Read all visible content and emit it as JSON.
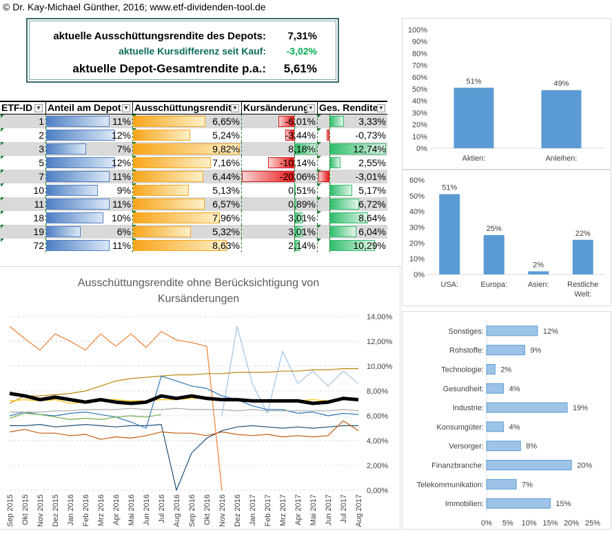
{
  "header": {
    "copyright": "© Dr. Kay-Michael Günther, 2016; www.etf-dividenden-tool.de"
  },
  "summary": {
    "row1_label": "aktuelle Ausschüttungsrendite des Depots:",
    "row1_value": "7,31%",
    "row2_label": "aktuelle Kursdifferenz seit Kauf:",
    "row2_value": "-3,02%",
    "row3_label": "aktuelle Depot-Gesamtrendite p.a.:",
    "row3_value": "5,61%",
    "colors": {
      "negative": "#00b050",
      "border": "#3a6b6b"
    }
  },
  "table": {
    "headers": [
      "ETF-ID",
      "Anteil am Depot",
      "Ausschüttungsrendite",
      "Kursänderung",
      "Ges. Rendite"
    ],
    "rows": [
      {
        "id": "1",
        "anteil": "11%",
        "anteil_v": 11,
        "aus": "6,65%",
        "aus_v": 6.65,
        "kurs": "-6,01%",
        "kurs_v": -6.01,
        "ges": "3,33%",
        "ges_v": 3.33
      },
      {
        "id": "2",
        "anteil": "12%",
        "anteil_v": 12,
        "aus": "5,24%",
        "aus_v": 5.24,
        "kurs": "-3,44%",
        "kurs_v": -3.44,
        "ges": "-0,73%",
        "ges_v": -0.73
      },
      {
        "id": "3",
        "anteil": "7%",
        "anteil_v": 7,
        "aus": "9,82%",
        "aus_v": 9.82,
        "kurs": "8,18%",
        "kurs_v": 8.18,
        "ges": "12,74%",
        "ges_v": 12.74
      },
      {
        "id": "5",
        "anteil": "12%",
        "anteil_v": 12,
        "aus": "7,16%",
        "aus_v": 7.16,
        "kurs": "-10,14%",
        "kurs_v": -10.14,
        "ges": "2,55%",
        "ges_v": 2.55
      },
      {
        "id": "7",
        "anteil": "11%",
        "anteil_v": 11,
        "aus": "6,44%",
        "aus_v": 6.44,
        "kurs": "-20,06%",
        "kurs_v": -20.06,
        "ges": "-3,01%",
        "ges_v": -3.01
      },
      {
        "id": "10",
        "anteil": "9%",
        "anteil_v": 9,
        "aus": "5,13%",
        "aus_v": 5.13,
        "kurs": "0,51%",
        "kurs_v": 0.51,
        "ges": "5,17%",
        "ges_v": 5.17
      },
      {
        "id": "11",
        "anteil": "11%",
        "anteil_v": 11,
        "aus": "6,57%",
        "aus_v": 6.57,
        "kurs": "0,89%",
        "kurs_v": 0.89,
        "ges": "6,72%",
        "ges_v": 6.72
      },
      {
        "id": "18",
        "anteil": "10%",
        "anteil_v": 10,
        "aus": "7,96%",
        "aus_v": 7.96,
        "kurs": "3,01%",
        "kurs_v": 3.01,
        "ges": "8,64%",
        "ges_v": 8.64
      },
      {
        "id": "19",
        "anteil": "6%",
        "anteil_v": 6,
        "aus": "5,32%",
        "aus_v": 5.32,
        "kurs": "3,01%",
        "kurs_v": 3.01,
        "ges": "6,04%",
        "ges_v": 6.04
      },
      {
        "id": "72",
        "anteil": "11%",
        "anteil_v": 11,
        "aus": "8,63%",
        "aus_v": 8.63,
        "kurs": "2,14%",
        "kurs_v": 2.14,
        "ges": "10,29%",
        "ges_v": 10.29
      }
    ],
    "stripe_color": "#d9d9d9"
  },
  "chart_data": [
    {
      "type": "bar",
      "id": "asset-class",
      "categories": [
        "Aktien:",
        "Anleihen:"
      ],
      "values": [
        51,
        49
      ],
      "data_labels": [
        "51%",
        "49%"
      ],
      "y_ticks": [
        "0%",
        "10%",
        "20%",
        "30%",
        "40%",
        "50%",
        "60%",
        "70%",
        "80%",
        "90%",
        "100%"
      ],
      "ylim": [
        0,
        100
      ],
      "color": "#5b9bd5"
    },
    {
      "type": "bar",
      "id": "region",
      "categories": [
        "USA:",
        "Europa:",
        "Asien:",
        "Restliche Welt:"
      ],
      "values": [
        51,
        25,
        2,
        22
      ],
      "data_labels": [
        "51%",
        "25%",
        "2%",
        "22%"
      ],
      "y_ticks": [
        "0%",
        "10%",
        "20%",
        "30%",
        "40%",
        "50%",
        "60%"
      ],
      "ylim": [
        0,
        60
      ],
      "color": "#5b9bd5"
    },
    {
      "type": "bar",
      "orientation": "horizontal",
      "id": "sector",
      "categories": [
        "Sonstiges:",
        "Rohstoffe:",
        "Technologie:",
        "Gesundheit:",
        "Industrie:",
        "Konsumgüter:",
        "Versorger:",
        "Finanzbranche:",
        "Telekommunikation:",
        "Immobilien:"
      ],
      "values": [
        12,
        9,
        2,
        4,
        19,
        4,
        8,
        20,
        7,
        15
      ],
      "data_labels": [
        "12%",
        "9%",
        "2%",
        "4%",
        "19%",
        "4%",
        "8%",
        "20%",
        "7%",
        "15%"
      ],
      "x_ticks": [
        "0%",
        "5%",
        "10%",
        "15%",
        "20%",
        "25%"
      ],
      "xlim": [
        0,
        25
      ],
      "color": "#9dc3e6"
    },
    {
      "type": "line",
      "id": "yield-history",
      "title": "Ausschüttungsrendite ohne Berücksichtigung von Kursänderungen",
      "x": [
        "Sep 2015",
        "Okt 2015",
        "Nov 2015",
        "Dez 2015",
        "Jan 2016",
        "Feb 2016",
        "Mrz 2016",
        "Apr 2016",
        "Mai 2016",
        "Jun 2016",
        "Jul 2016",
        "Aug 2016",
        "Sep 2016",
        "Okt 2016",
        "Nov 2016",
        "Dez 2016",
        "Jan 2017",
        "Feb 2017",
        "Mrz 2017",
        "Apr 2017",
        "Mai 2017",
        "Jun 2017",
        "Jul 2017",
        "Aug 2017"
      ],
      "y_ticks": [
        "0,00%",
        "2,00%",
        "4,00%",
        "6,00%",
        "8,00%",
        "10,00%",
        "12,00%",
        "14,00%"
      ],
      "ylim": [
        0,
        14
      ],
      "series": [
        {
          "color": "#ed7d31",
          "values": [
            13.2,
            12.2,
            11.3,
            12.6,
            12.0,
            11.3,
            12.6,
            11.6,
            12.6,
            11.5,
            12.8,
            12.1,
            11.9,
            11.6,
            0,
            null,
            null,
            null,
            null,
            null,
            null,
            null,
            null,
            null
          ]
        },
        {
          "color": "#9dc3e6",
          "values": [
            null,
            null,
            null,
            null,
            null,
            null,
            null,
            null,
            null,
            null,
            null,
            null,
            null,
            null,
            6.0,
            13.2,
            8.6,
            6.2,
            11.2,
            8.6,
            9.6,
            8.4,
            9.6,
            8.6
          ]
        },
        {
          "color": "#b8860b",
          "values": [
            7.0,
            7.6,
            7.6,
            7.7,
            7.8,
            8.0,
            8.4,
            8.8,
            9.0,
            9.1,
            9.2,
            9.3,
            9.3,
            9.4,
            9.4,
            9.5,
            9.5,
            9.5,
            9.6,
            9.6,
            9.7,
            9.7,
            9.8,
            9.8
          ]
        },
        {
          "color": "#ffc000",
          "values": [
            7.2,
            7.3,
            7.2,
            7.3,
            7.0,
            7.1,
            7.3,
            7.3,
            7.2,
            7.2,
            7.3,
            7.3,
            7.4,
            7.4,
            7.3,
            7.2,
            7.2,
            7.1,
            7.2,
            7.2,
            7.3,
            7.2,
            7.3,
            7.2
          ]
        },
        {
          "color": "#1f4e79",
          "values": [
            5.2,
            5.2,
            5.3,
            5.1,
            5.2,
            5.3,
            5.2,
            5.1,
            5.2,
            5.2,
            5.3,
            0,
            3.0,
            4.2,
            4.8,
            5.1,
            5.2,
            5.1,
            5.0,
            5.1,
            5.0,
            5.1,
            5.2,
            5.2
          ]
        },
        {
          "color": "#2e75b6",
          "values": [
            6.0,
            6.3,
            6.1,
            6.0,
            6.2,
            6.3,
            6.1,
            5.9,
            5.5,
            5.0,
            9.2,
            8.8,
            8.4,
            8.2,
            7.6,
            7.3,
            6.8,
            6.5,
            6.5,
            6.2,
            6.3,
            6.0,
            6.2,
            6.1
          ]
        },
        {
          "color": "#70ad47",
          "values": [
            5.8,
            6.2,
            6.1,
            5.9,
            5.7,
            5.8,
            5.7,
            5.9,
            6.0,
            5.9,
            6.1,
            null,
            null,
            null,
            null,
            null,
            null,
            null,
            null,
            null,
            null,
            null,
            null,
            null
          ]
        },
        {
          "color": "#a5a5a5",
          "values": [
            6.3,
            6.3,
            6.3,
            6.4,
            6.4,
            6.5,
            6.5,
            6.5,
            6.6,
            6.5,
            6.5,
            6.6,
            6.5,
            6.5,
            6.5,
            6.4,
            6.5,
            6.4,
            6.4,
            6.4,
            6.4,
            6.4,
            6.5,
            6.4
          ]
        },
        {
          "color": "#c55a11",
          "values": [
            4.7,
            4.9,
            4.6,
            4.6,
            4.4,
            4.5,
            4.1,
            4.3,
            4.2,
            4.4,
            4.7,
            4.6,
            4.6,
            4.4,
            4.7,
            4.5,
            4.4,
            4.5,
            4.3,
            4.4,
            4.3,
            4.4,
            5.6,
            4.8
          ]
        },
        {
          "color": "#000000",
          "width": 5,
          "values": [
            7.8,
            7.6,
            7.3,
            7.5,
            7.3,
            7.1,
            7.3,
            7.1,
            7.0,
            7.1,
            7.6,
            7.4,
            7.6,
            7.4,
            7.3,
            7.3,
            7.2,
            7.2,
            7.2,
            7.2,
            7.0,
            7.1,
            7.4,
            7.3
          ]
        }
      ]
    }
  ]
}
